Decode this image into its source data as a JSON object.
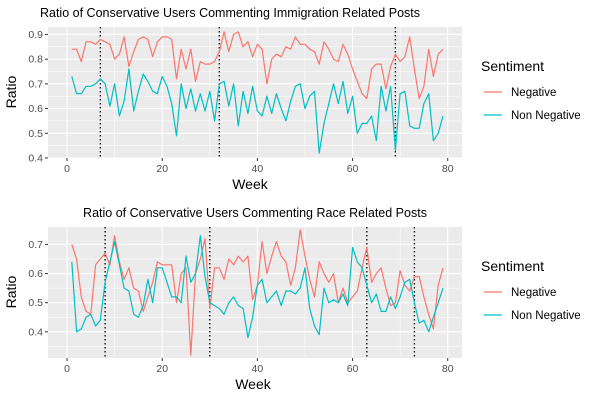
{
  "chart_data": [
    {
      "type": "line",
      "title": "Ratio of Conservative Users Commenting Immigration Related Posts",
      "xlabel": "Week",
      "ylabel": "Ratio",
      "xlim": [
        -4,
        83
      ],
      "ylim": [
        0.4,
        0.93
      ],
      "xticks": [
        0,
        20,
        40,
        60,
        80
      ],
      "xtick_labels": [
        "0",
        "20",
        "40",
        "60",
        "80"
      ],
      "yticks": [
        0.4,
        0.5,
        0.6,
        0.7,
        0.8,
        0.9
      ],
      "ytick_labels": [
        "0.4",
        "0.5",
        "0.6",
        "0.7",
        "0.8",
        "0.9"
      ],
      "grid": true,
      "vlines": [
        7,
        32,
        69
      ],
      "legend": {
        "title": "Sentiment",
        "position": "right"
      },
      "x": [
        1,
        2,
        3,
        4,
        5,
        6,
        7,
        8,
        9,
        10,
        11,
        12,
        13,
        14,
        15,
        16,
        17,
        18,
        19,
        20,
        21,
        22,
        23,
        24,
        25,
        26,
        27,
        28,
        29,
        30,
        31,
        32,
        33,
        34,
        35,
        36,
        37,
        38,
        39,
        40,
        41,
        42,
        43,
        44,
        45,
        46,
        47,
        48,
        49,
        50,
        51,
        52,
        53,
        54,
        55,
        56,
        57,
        58,
        59,
        60,
        61,
        62,
        63,
        64,
        65,
        66,
        67,
        68,
        69,
        70,
        71,
        72,
        73,
        74,
        75,
        76,
        77,
        78,
        79
      ],
      "series": [
        {
          "name": "Negative",
          "color": "#F8766D",
          "values": [
            0.84,
            0.84,
            0.79,
            0.87,
            0.87,
            0.86,
            0.88,
            0.87,
            0.86,
            0.8,
            0.82,
            0.89,
            0.77,
            0.83,
            0.88,
            0.89,
            0.88,
            0.81,
            0.87,
            0.89,
            0.89,
            0.88,
            0.72,
            0.84,
            0.76,
            0.84,
            0.71,
            0.79,
            0.78,
            0.78,
            0.79,
            0.83,
            0.91,
            0.83,
            0.9,
            0.91,
            0.85,
            0.87,
            0.81,
            0.86,
            0.84,
            0.7,
            0.8,
            0.82,
            0.81,
            0.85,
            0.84,
            0.89,
            0.86,
            0.86,
            0.84,
            0.83,
            0.78,
            0.87,
            0.84,
            0.8,
            0.79,
            0.86,
            0.82,
            0.76,
            0.71,
            0.66,
            0.64,
            0.76,
            0.78,
            0.78,
            0.68,
            0.77,
            0.82,
            0.79,
            0.81,
            0.89,
            0.76,
            0.64,
            0.69,
            0.84,
            0.73,
            0.82,
            0.84
          ]
        },
        {
          "name": "Non Negative",
          "color": "#00BFC4",
          "values": [
            0.73,
            0.66,
            0.66,
            0.69,
            0.69,
            0.7,
            0.72,
            0.7,
            0.61,
            0.7,
            0.57,
            0.63,
            0.76,
            0.59,
            0.67,
            0.74,
            0.71,
            0.67,
            0.66,
            0.73,
            0.69,
            0.62,
            0.49,
            0.7,
            0.6,
            0.68,
            0.59,
            0.66,
            0.59,
            0.67,
            0.55,
            0.7,
            0.71,
            0.61,
            0.7,
            0.53,
            0.67,
            0.58,
            0.69,
            0.59,
            0.57,
            0.65,
            0.58,
            0.66,
            0.6,
            0.55,
            0.63,
            0.69,
            0.7,
            0.6,
            0.65,
            0.67,
            0.42,
            0.54,
            0.62,
            0.7,
            0.62,
            0.71,
            0.58,
            0.65,
            0.5,
            0.54,
            0.54,
            0.57,
            0.47,
            0.69,
            0.59,
            0.69,
            0.43,
            0.66,
            0.67,
            0.53,
            0.52,
            0.52,
            0.62,
            0.66,
            0.47,
            0.5,
            0.57
          ]
        }
      ]
    },
    {
      "type": "line",
      "title": "Ratio of Conservative Users Commenting Race Related Posts",
      "xlabel": "Week",
      "ylabel": "Ratio",
      "xlim": [
        -4,
        83
      ],
      "ylim": [
        0.31,
        0.76
      ],
      "xticks": [
        0,
        20,
        40,
        60,
        80
      ],
      "xtick_labels": [
        "0",
        "20",
        "40",
        "60",
        "80"
      ],
      "yticks": [
        0.4,
        0.5,
        0.6,
        0.7
      ],
      "ytick_labels": [
        "0.4",
        "0.5",
        "0.6",
        "0.7"
      ],
      "grid": true,
      "vlines": [
        8,
        30,
        63,
        73
      ],
      "legend": {
        "title": "Sentiment",
        "position": "right"
      },
      "x": [
        1,
        2,
        3,
        4,
        5,
        6,
        7,
        8,
        9,
        10,
        11,
        12,
        13,
        14,
        15,
        16,
        17,
        18,
        19,
        20,
        21,
        22,
        23,
        24,
        25,
        26,
        27,
        28,
        29,
        30,
        31,
        32,
        33,
        34,
        35,
        36,
        37,
        38,
        39,
        40,
        41,
        42,
        43,
        44,
        45,
        46,
        47,
        48,
        49,
        50,
        51,
        52,
        53,
        54,
        55,
        56,
        57,
        58,
        59,
        60,
        61,
        62,
        63,
        64,
        65,
        66,
        67,
        68,
        69,
        70,
        71,
        72,
        73,
        74,
        75,
        76,
        77,
        78,
        79
      ],
      "series": [
        {
          "name": "Negative",
          "color": "#F8766D",
          "values": [
            0.7,
            0.65,
            0.52,
            0.47,
            0.46,
            0.63,
            0.65,
            0.67,
            0.63,
            0.73,
            0.64,
            0.58,
            0.62,
            0.55,
            0.54,
            0.47,
            0.52,
            0.57,
            0.64,
            0.63,
            0.63,
            0.63,
            0.5,
            0.6,
            0.62,
            0.32,
            0.6,
            0.65,
            0.72,
            0.48,
            0.62,
            0.62,
            0.58,
            0.65,
            0.63,
            0.66,
            0.64,
            0.66,
            0.51,
            0.56,
            0.71,
            0.6,
            0.66,
            0.71,
            0.66,
            0.64,
            0.56,
            0.62,
            0.75,
            0.66,
            0.58,
            0.52,
            0.64,
            0.6,
            0.57,
            0.6,
            0.5,
            0.55,
            0.5,
            0.52,
            0.54,
            0.62,
            0.69,
            0.57,
            0.6,
            0.62,
            0.55,
            0.49,
            0.5,
            0.61,
            0.56,
            0.54,
            0.59,
            0.59,
            0.52,
            0.46,
            0.41,
            0.56,
            0.62
          ]
        },
        {
          "name": "Non Negative",
          "color": "#00BFC4",
          "values": [
            0.64,
            0.4,
            0.41,
            0.45,
            0.46,
            0.42,
            0.44,
            0.57,
            0.64,
            0.71,
            0.63,
            0.55,
            0.54,
            0.46,
            0.45,
            0.49,
            0.58,
            0.5,
            0.62,
            0.62,
            0.57,
            0.52,
            0.52,
            0.5,
            0.66,
            0.57,
            0.6,
            0.73,
            0.59,
            0.5,
            0.49,
            0.48,
            0.46,
            0.5,
            0.52,
            0.49,
            0.48,
            0.38,
            0.45,
            0.56,
            0.58,
            0.5,
            0.52,
            0.54,
            0.49,
            0.54,
            0.54,
            0.53,
            0.55,
            0.62,
            0.48,
            0.42,
            0.39,
            0.55,
            0.5,
            0.51,
            0.5,
            0.53,
            0.49,
            0.69,
            0.64,
            0.62,
            0.56,
            0.5,
            0.53,
            0.47,
            0.47,
            0.52,
            0.48,
            0.52,
            0.57,
            0.58,
            0.5,
            0.43,
            0.44,
            0.4,
            0.45,
            0.5,
            0.55
          ]
        }
      ]
    }
  ]
}
